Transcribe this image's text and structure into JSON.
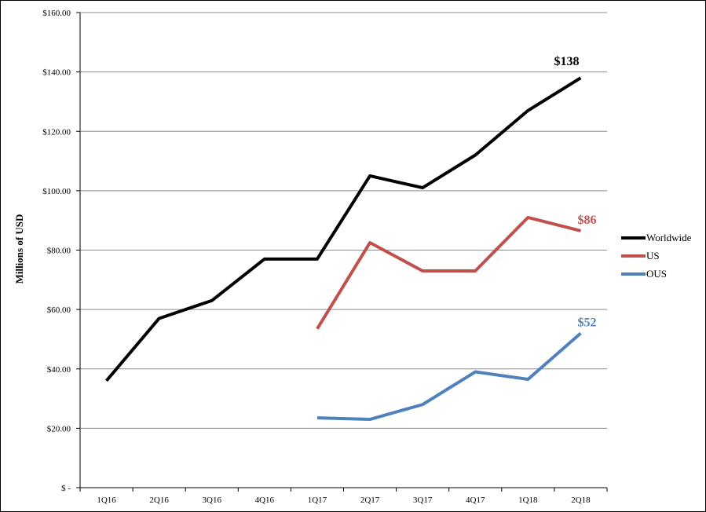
{
  "chart_data": {
    "type": "line",
    "title": "",
    "xlabel": "",
    "ylabel": "Millions of USD",
    "ylim": [
      0,
      160
    ],
    "yticks": [
      0,
      20,
      40,
      60,
      80,
      100,
      120,
      140,
      160
    ],
    "ytick_labels": [
      "$ -",
      "$20.00",
      "$40.00",
      "$60.00",
      "$80.00",
      "$100.00",
      "$120.00",
      "$140.00",
      "$160.00"
    ],
    "categories": [
      "1Q16",
      "2Q16",
      "3Q16",
      "4Q16",
      "1Q17",
      "2Q17",
      "3Q17",
      "4Q17",
      "1Q18",
      "2Q18"
    ],
    "grid": "horizontal",
    "legend_position": "right",
    "series": [
      {
        "name": "Worldwide",
        "color": "#000000",
        "values": [
          36,
          57,
          63,
          77,
          77,
          105,
          101,
          112,
          127,
          138
        ],
        "end_label": "$138"
      },
      {
        "name": "US",
        "color": "#c0504d",
        "values": [
          null,
          null,
          null,
          null,
          53.5,
          82.5,
          73,
          73,
          91,
          86.5
        ],
        "end_label": "$86"
      },
      {
        "name": "OUS",
        "color": "#4f81bd",
        "values": [
          null,
          null,
          null,
          null,
          23.5,
          23,
          28,
          39,
          36.5,
          52
        ],
        "end_label": "$52"
      }
    ]
  }
}
